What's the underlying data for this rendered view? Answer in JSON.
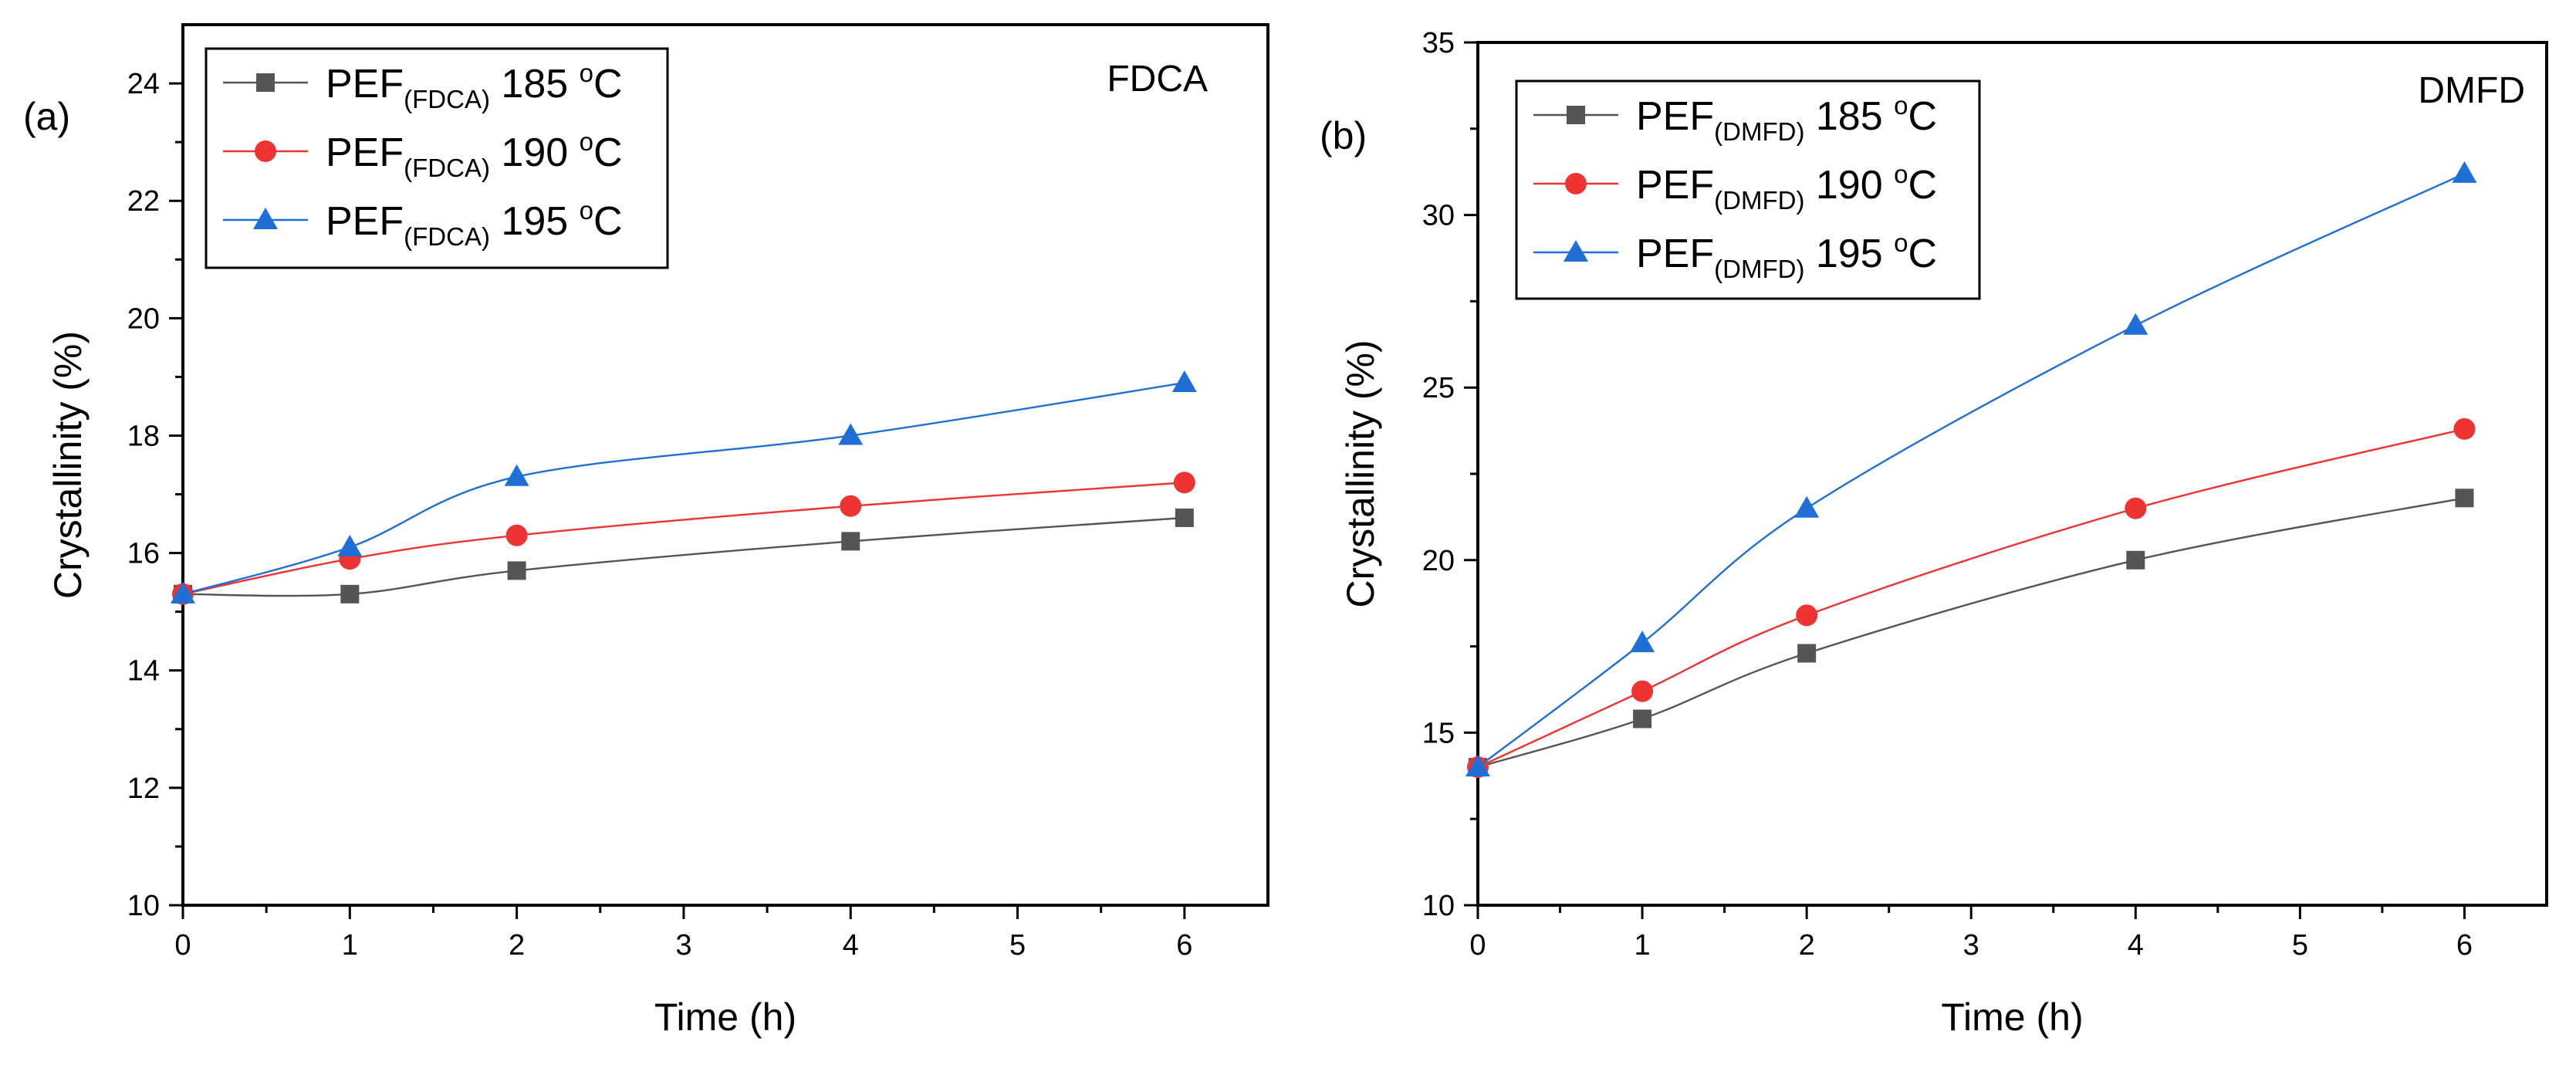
{
  "chart_data": [
    {
      "type": "line",
      "panel_label": "(a)",
      "corner_label": "FDCA",
      "xlabel": "Time (h)",
      "ylabel": "Crystallinity (%)",
      "xlim": [
        0,
        6.5
      ],
      "ylim": [
        10,
        25
      ],
      "x_ticks": [
        "0",
        "1",
        "2",
        "3",
        "4",
        "5",
        "6"
      ],
      "y_ticks": [
        "10",
        "12",
        "14",
        "16",
        "18",
        "20",
        "22",
        "24"
      ],
      "x": [
        0,
        1,
        2,
        4,
        6
      ],
      "series": [
        {
          "base": "PEF",
          "sub": "(FDCA)",
          "temp": "185",
          "sup": "o",
          "unit": "C",
          "marker": "square",
          "color": "#555555",
          "values": [
            15.3,
            15.3,
            15.7,
            16.2,
            16.6
          ]
        },
        {
          "base": "PEF",
          "sub": "(FDCA)",
          "temp": "190",
          "sup": "o",
          "unit": "C",
          "marker": "circle",
          "color": "#ee3333",
          "values": [
            15.3,
            15.9,
            16.3,
            16.8,
            17.2
          ]
        },
        {
          "base": "PEF",
          "sub": "(FDCA)",
          "temp": "195",
          "sup": "o",
          "unit": "C",
          "marker": "triangle",
          "color": "#1f6fd6",
          "values": [
            15.3,
            16.1,
            17.3,
            18.0,
            18.9
          ]
        }
      ]
    },
    {
      "type": "line",
      "panel_label": "(b)",
      "corner_label": "DMFD",
      "xlabel": "Time (h)",
      "ylabel": "Crystallinity (%)",
      "xlim": [
        0,
        6.5
      ],
      "ylim": [
        10,
        35
      ],
      "x_ticks": [
        "0",
        "1",
        "2",
        "3",
        "4",
        "5",
        "6"
      ],
      "y_ticks": [
        "10",
        "15",
        "20",
        "25",
        "30",
        "35"
      ],
      "x": [
        0,
        1,
        2,
        4,
        6
      ],
      "series": [
        {
          "base": "PEF",
          "sub": "(DMFD)",
          "temp": "185",
          "sup": "o",
          "unit": "C",
          "marker": "square",
          "color": "#555555",
          "values": [
            14.0,
            15.4,
            17.3,
            20.0,
            21.8
          ]
        },
        {
          "base": "PEF",
          "sub": "(DMFD)",
          "temp": "190",
          "sup": "o",
          "unit": "C",
          "marker": "circle",
          "color": "#ee3333",
          "values": [
            14.0,
            16.2,
            18.4,
            21.5,
            23.8
          ]
        },
        {
          "base": "PEF",
          "sub": "(DMFD)",
          "temp": "195",
          "sup": "o",
          "unit": "C",
          "marker": "triangle",
          "color": "#1f6fd6",
          "values": [
            14.0,
            17.6,
            21.5,
            26.8,
            31.2
          ]
        }
      ]
    }
  ]
}
